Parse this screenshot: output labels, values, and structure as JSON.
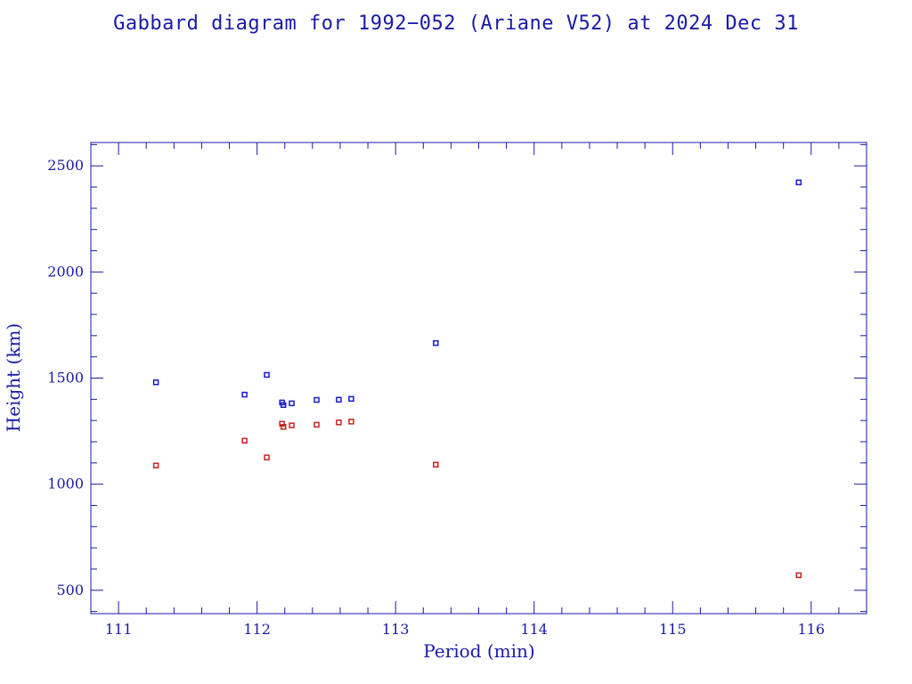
{
  "chart_data": {
    "type": "scatter",
    "title": "Gabbard diagram for 1992−052 (Ariane V52) at 2024 Dec 31",
    "xlabel": "Period (min)",
    "ylabel": "Height (km)",
    "xlim": [
      110.8,
      116.4
    ],
    "ylim": [
      390,
      2610
    ],
    "x_ticks": [
      111,
      112,
      113,
      114,
      115,
      116
    ],
    "y_ticks": [
      500,
      1000,
      1500,
      2000,
      2500
    ],
    "grid": false,
    "series": [
      {
        "role": "apogee",
        "color": "#1a1ad0",
        "points": [
          [
            111.27,
            1480
          ],
          [
            111.91,
            1422
          ],
          [
            112.07,
            1515
          ],
          [
            112.18,
            1385
          ],
          [
            112.19,
            1373
          ],
          [
            112.25,
            1381
          ],
          [
            112.43,
            1397
          ],
          [
            112.59,
            1398
          ],
          [
            112.68,
            1402
          ],
          [
            113.29,
            1665
          ],
          [
            115.91,
            2422
          ]
        ]
      },
      {
        "role": "perigee",
        "color": "#cc2222",
        "points": [
          [
            111.27,
            1088
          ],
          [
            111.91,
            1205
          ],
          [
            112.07,
            1126
          ],
          [
            112.18,
            1285
          ],
          [
            112.19,
            1270
          ],
          [
            112.25,
            1277
          ],
          [
            112.43,
            1280
          ],
          [
            112.59,
            1291
          ],
          [
            112.68,
            1295
          ],
          [
            113.29,
            1092
          ],
          [
            115.91,
            571
          ]
        ]
      }
    ]
  },
  "colors": {
    "axis": "#1a1aa6"
  }
}
